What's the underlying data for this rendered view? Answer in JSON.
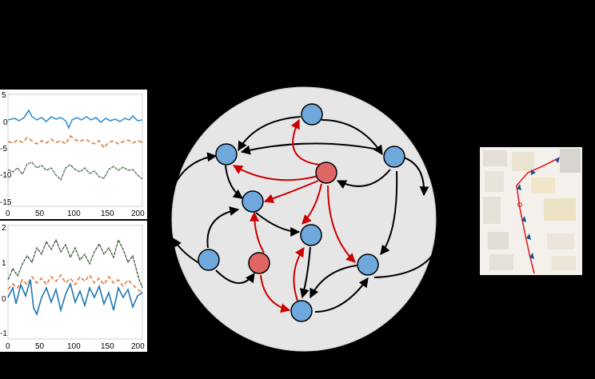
{
  "left_panels": {
    "top_chart": {
      "y_ticks": [
        "5",
        "0",
        "-5",
        "-10",
        "-15"
      ],
      "x_ticks": [
        "0",
        "50",
        "100",
        "150",
        "200"
      ],
      "series_colors": [
        "#3a8fd0",
        "#e07b39",
        "#5a7a5a"
      ]
    },
    "bottom_chart": {
      "y_ticks": [
        "2",
        "1",
        "0",
        "-1"
      ],
      "x_ticks": [
        "0",
        "50",
        "100",
        "150",
        "200"
      ],
      "series_colors": [
        "#1f77b4",
        "#e07b39",
        "#3d5a3d"
      ]
    }
  },
  "graph": {
    "node_colors": {
      "blue": "#6fa8dc",
      "red": "#e06666"
    },
    "edge_colors": {
      "black": "#000000",
      "red": "#cc0000"
    },
    "nodes": [
      {
        "id": "n1",
        "color": "blue"
      },
      {
        "id": "n2",
        "color": "blue"
      },
      {
        "id": "n3",
        "color": "blue"
      },
      {
        "id": "n4",
        "color": "red"
      },
      {
        "id": "n5",
        "color": "blue"
      },
      {
        "id": "n6",
        "color": "blue"
      },
      {
        "id": "n7",
        "color": "blue"
      },
      {
        "id": "n8",
        "color": "red"
      },
      {
        "id": "n9",
        "color": "blue"
      },
      {
        "id": "n10",
        "color": "blue"
      }
    ]
  },
  "map_panel": {
    "route_color": "#e02020",
    "marker_color": "#1a4f8a"
  }
}
